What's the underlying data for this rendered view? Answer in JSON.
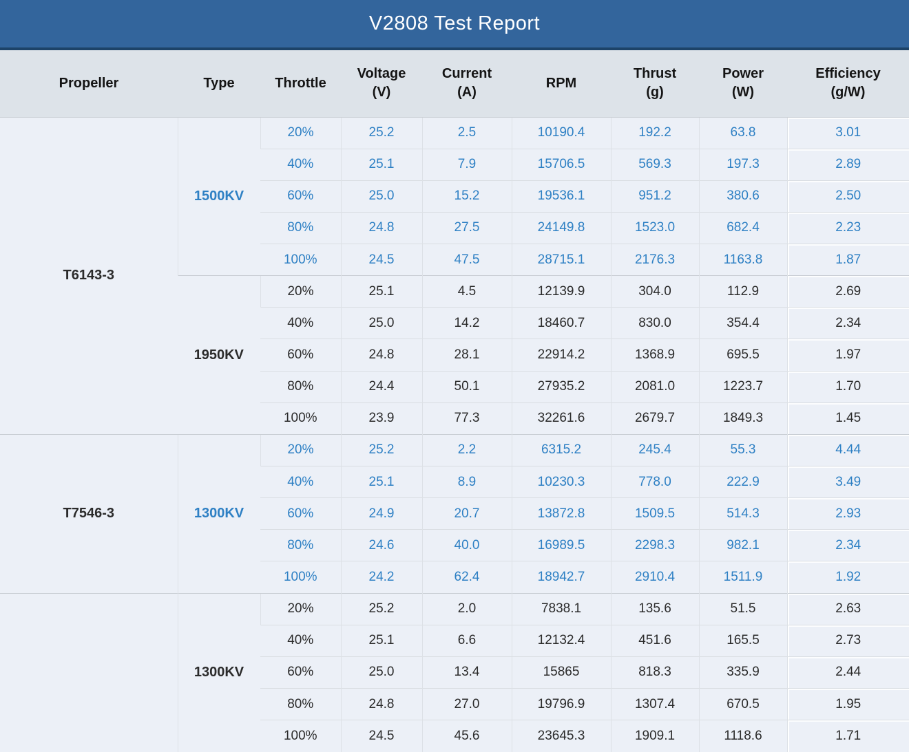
{
  "title": "V2808 Test Report",
  "colors": {
    "title_bar_bg": "#33659c",
    "title_divider": "#1d4368",
    "header_bg": "#dde3e9",
    "cell_bg": "#ecf0f7",
    "blue_text": "#2e80c4",
    "dark_text": "#2b2b2b"
  },
  "headers": [
    {
      "title": "Propeller",
      "sub": ""
    },
    {
      "title": "Type",
      "sub": ""
    },
    {
      "title": "Throttle",
      "sub": ""
    },
    {
      "title": "Voltage",
      "sub": "(V)"
    },
    {
      "title": "Current",
      "sub": "(A)"
    },
    {
      "title": "RPM",
      "sub": ""
    },
    {
      "title": "Thrust",
      "sub": "(g)"
    },
    {
      "title": "Power",
      "sub": "(W)"
    },
    {
      "title": "Efficiency",
      "sub": "(g/W)"
    }
  ],
  "groups": [
    {
      "propeller": "T6143-3",
      "types": [
        {
          "type": "1500KV",
          "highlight": true,
          "rows": [
            [
              "20%",
              "25.2",
              "2.5",
              "10190.4",
              "192.2",
              "63.8",
              "3.01"
            ],
            [
              "40%",
              "25.1",
              "7.9",
              "15706.5",
              "569.3",
              "197.3",
              "2.89"
            ],
            [
              "60%",
              "25.0",
              "15.2",
              "19536.1",
              "951.2",
              "380.6",
              "2.50"
            ],
            [
              "80%",
              "24.8",
              "27.5",
              "24149.8",
              "1523.0",
              "682.4",
              "2.23"
            ],
            [
              "100%",
              "24.5",
              "47.5",
              "28715.1",
              "2176.3",
              "1163.8",
              "1.87"
            ]
          ]
        },
        {
          "type": "1950KV",
          "highlight": false,
          "rows": [
            [
              "20%",
              "25.1",
              "4.5",
              "12139.9",
              "304.0",
              "112.9",
              "2.69"
            ],
            [
              "40%",
              "25.0",
              "14.2",
              "18460.7",
              "830.0",
              "354.4",
              "2.34"
            ],
            [
              "60%",
              "24.8",
              "28.1",
              "22914.2",
              "1368.9",
              "695.5",
              "1.97"
            ],
            [
              "80%",
              "24.4",
              "50.1",
              "27935.2",
              "2081.0",
              "1223.7",
              "1.70"
            ],
            [
              "100%",
              "23.9",
              "77.3",
              "32261.6",
              "2679.7",
              "1849.3",
              "1.45"
            ]
          ]
        }
      ]
    },
    {
      "propeller": "T7546-3",
      "types": [
        {
          "type": "1300KV",
          "highlight": true,
          "rows": [
            [
              "20%",
              "25.2",
              "2.2",
              "6315.2",
              "245.4",
              "55.3",
              "4.44"
            ],
            [
              "40%",
              "25.1",
              "8.9",
              "10230.3",
              "778.0",
              "222.9",
              "3.49"
            ],
            [
              "60%",
              "24.9",
              "20.7",
              "13872.8",
              "1509.5",
              "514.3",
              "2.93"
            ],
            [
              "80%",
              "24.6",
              "40.0",
              "16989.5",
              "2298.3",
              "982.1",
              "2.34"
            ],
            [
              "100%",
              "24.2",
              "62.4",
              "18942.7",
              "2910.4",
              "1511.9",
              "1.92"
            ]
          ]
        }
      ]
    },
    {
      "propeller": "",
      "types": [
        {
          "type": "1300KV",
          "highlight": false,
          "rows": [
            [
              "20%",
              "25.2",
              "2.0",
              "7838.1",
              "135.6",
              "51.5",
              "2.63"
            ],
            [
              "40%",
              "25.1",
              "6.6",
              "12132.4",
              "451.6",
              "165.5",
              "2.73"
            ],
            [
              "60%",
              "25.0",
              "13.4",
              "15865",
              "818.3",
              "335.9",
              "2.44"
            ],
            [
              "80%",
              "24.8",
              "27.0",
              "19796.9",
              "1307.4",
              "670.5",
              "1.95"
            ],
            [
              "100%",
              "24.5",
              "45.6",
              "23645.3",
              "1909.1",
              "1118.6",
              "1.71"
            ]
          ]
        }
      ]
    }
  ],
  "chart_data": {
    "type": "table",
    "title": "V2808 Test Report",
    "columns": [
      "Propeller",
      "Type",
      "Throttle",
      "Voltage (V)",
      "Current (A)",
      "RPM",
      "Thrust (g)",
      "Power (W)",
      "Efficiency (g/W)"
    ],
    "rows": [
      [
        "T6143-3",
        "1500KV",
        "20%",
        25.2,
        2.5,
        10190.4,
        192.2,
        63.8,
        3.01
      ],
      [
        "T6143-3",
        "1500KV",
        "40%",
        25.1,
        7.9,
        15706.5,
        569.3,
        197.3,
        2.89
      ],
      [
        "T6143-3",
        "1500KV",
        "60%",
        25.0,
        15.2,
        19536.1,
        951.2,
        380.6,
        2.5
      ],
      [
        "T6143-3",
        "1500KV",
        "80%",
        24.8,
        27.5,
        24149.8,
        1523.0,
        682.4,
        2.23
      ],
      [
        "T6143-3",
        "1500KV",
        "100%",
        24.5,
        47.5,
        28715.1,
        2176.3,
        1163.8,
        1.87
      ],
      [
        "T6143-3",
        "1950KV",
        "20%",
        25.1,
        4.5,
        12139.9,
        304.0,
        112.9,
        2.69
      ],
      [
        "T6143-3",
        "1950KV",
        "40%",
        25.0,
        14.2,
        18460.7,
        830.0,
        354.4,
        2.34
      ],
      [
        "T6143-3",
        "1950KV",
        "60%",
        24.8,
        28.1,
        22914.2,
        1368.9,
        695.5,
        1.97
      ],
      [
        "T6143-3",
        "1950KV",
        "80%",
        24.4,
        50.1,
        27935.2,
        2081.0,
        1223.7,
        1.7
      ],
      [
        "T6143-3",
        "1950KV",
        "100%",
        23.9,
        77.3,
        32261.6,
        2679.7,
        1849.3,
        1.45
      ],
      [
        "T7546-3",
        "1300KV",
        "20%",
        25.2,
        2.2,
        6315.2,
        245.4,
        55.3,
        4.44
      ],
      [
        "T7546-3",
        "1300KV",
        "40%",
        25.1,
        8.9,
        10230.3,
        778.0,
        222.9,
        3.49
      ],
      [
        "T7546-3",
        "1300KV",
        "60%",
        24.9,
        20.7,
        13872.8,
        1509.5,
        514.3,
        2.93
      ],
      [
        "T7546-3",
        "1300KV",
        "80%",
        24.6,
        40.0,
        16989.5,
        2298.3,
        982.1,
        2.34
      ],
      [
        "T7546-3",
        "1300KV",
        "100%",
        24.2,
        62.4,
        18942.7,
        2910.4,
        1511.9,
        1.92
      ],
      [
        "",
        "1300KV",
        "20%",
        25.2,
        2.0,
        7838.1,
        135.6,
        51.5,
        2.63
      ],
      [
        "",
        "1300KV",
        "40%",
        25.1,
        6.6,
        12132.4,
        451.6,
        165.5,
        2.73
      ],
      [
        "",
        "1300KV",
        "60%",
        25.0,
        13.4,
        15865,
        818.3,
        335.9,
        2.44
      ],
      [
        "",
        "1300KV",
        "80%",
        24.8,
        27.0,
        19796.9,
        1307.4,
        670.5,
        1.95
      ],
      [
        "",
        "1300KV",
        "100%",
        24.5,
        45.6,
        23645.3,
        1909.1,
        1118.6,
        1.71
      ]
    ]
  }
}
